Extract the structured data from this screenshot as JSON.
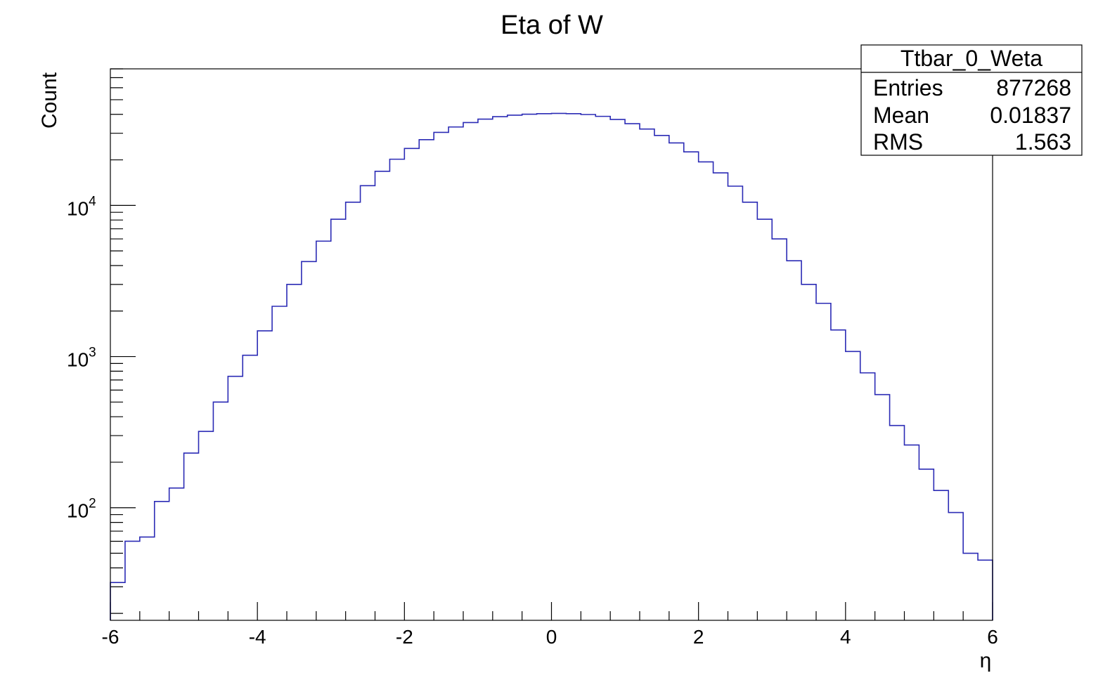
{
  "chart_data": {
    "type": "histogram",
    "title": "Eta of W",
    "xlabel": "η",
    "ylabel": "Count",
    "xlim": [
      -6,
      6
    ],
    "ylim": [
      18,
      80000
    ],
    "y_scale": "log",
    "x_ticks": [
      -6,
      -4,
      -2,
      0,
      2,
      4,
      6
    ],
    "x_tick_labels": [
      "-6",
      "-4",
      "-2",
      "0",
      "2",
      "4",
      "6"
    ],
    "y_ticks": [
      100,
      1000,
      10000
    ],
    "y_tick_labels": [
      {
        "base": "10",
        "exp": "2"
      },
      {
        "base": "10",
        "exp": "3"
      },
      {
        "base": "10",
        "exp": "4"
      }
    ],
    "bins": {
      "start": -6,
      "width": 0.2,
      "counts": [
        32,
        60,
        64,
        110,
        135,
        230,
        320,
        500,
        740,
        1020,
        1480,
        2150,
        3000,
        4250,
        5800,
        8100,
        10500,
        13500,
        16800,
        20200,
        23800,
        27200,
        30400,
        33000,
        35300,
        37200,
        38600,
        39500,
        40100,
        40400,
        40600,
        40400,
        39900,
        38800,
        37000,
        34700,
        32000,
        29000,
        25900,
        22600,
        19400,
        16400,
        13400,
        10500,
        8100,
        6000,
        4300,
        3000,
        2250,
        1500,
        1080,
        780,
        560,
        350,
        260,
        180,
        130,
        93,
        50,
        45
      ]
    },
    "legend": "stats box top-right",
    "color": "#2b2bb5",
    "stats": {
      "name": "Ttbar_0_Weta",
      "rows": [
        {
          "label": "Entries",
          "value": "877268"
        },
        {
          "label": "Mean",
          "value": "0.01837"
        },
        {
          "label": "RMS",
          "value": "1.563"
        }
      ]
    }
  }
}
